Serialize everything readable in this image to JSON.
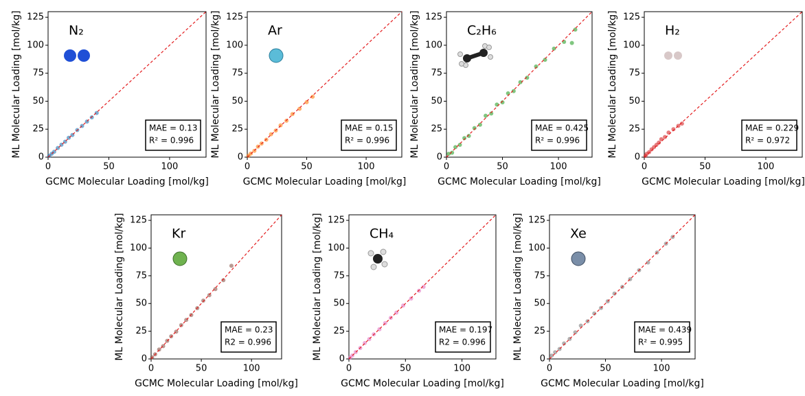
{
  "chart_data": [
    {
      "type": "scatter",
      "label": "N₂",
      "color": "#1f77b4",
      "x_label": "GCMC Molecular Loading [mol/kg]",
      "y_label": "ML Molecular Loading [mol/kg]",
      "x": [
        1,
        3,
        5,
        8,
        11,
        14,
        17,
        20,
        24,
        28,
        32,
        36,
        40
      ],
      "values": [
        1.2,
        3.1,
        4.8,
        8.2,
        11.1,
        13.8,
        17.3,
        19.8,
        24.2,
        27.9,
        31.8,
        35.6,
        39.5
      ],
      "xlim": [
        0,
        130
      ],
      "ylim": [
        0,
        130
      ],
      "xticks": [
        0,
        50,
        100
      ],
      "yticks": [
        0,
        25,
        50,
        75,
        100,
        125
      ],
      "annotations": [
        "MAE = 0.13",
        "R² = 0.996"
      ]
    },
    {
      "type": "scatter",
      "label": "Ar",
      "color": "#ff7f0e",
      "x_label": "GCMC Molecular Loading [mol/kg]",
      "y_label": "ML Molecular Loading [mol/kg]",
      "x": [
        1,
        3,
        6,
        9,
        12,
        16,
        20,
        24,
        28,
        33,
        38,
        44,
        50,
        55
      ],
      "values": [
        1.3,
        3.2,
        5.7,
        9.4,
        12.2,
        15.6,
        20.5,
        23.8,
        28.4,
        32.6,
        38.5,
        43.2,
        49.1,
        54
      ],
      "xlim": [
        0,
        130
      ],
      "ylim": [
        0,
        130
      ],
      "xticks": [
        0,
        50,
        100
      ],
      "yticks": [
        0,
        25,
        50,
        75,
        100,
        125
      ],
      "annotations": [
        "MAE = 0.15",
        "R² = 0.996"
      ]
    },
    {
      "type": "scatter",
      "label": "C₂H₆",
      "color": "#2ca02c",
      "x_label": "GCMC Molecular Loading [mol/kg]",
      "y_label": "ML Molecular Loading [mol/kg]",
      "x": [
        2,
        5,
        8,
        12,
        16,
        20,
        25,
        30,
        35,
        40,
        45,
        50,
        55,
        60,
        66,
        72,
        80,
        88,
        96,
        105,
        112,
        115
      ],
      "values": [
        3,
        4,
        9,
        11,
        17,
        19,
        26,
        29,
        37,
        39,
        47,
        49,
        57,
        59,
        67,
        71,
        81,
        87,
        97,
        103,
        102,
        114
      ],
      "xlim": [
        0,
        130
      ],
      "ylim": [
        0,
        130
      ],
      "xticks": [
        0,
        50,
        100
      ],
      "yticks": [
        0,
        25,
        50,
        75,
        100,
        125
      ],
      "annotations": [
        "MAE = 0.425",
        "R² = 0.996"
      ]
    },
    {
      "type": "scatter",
      "label": "H₂",
      "color": "#d62728",
      "x_label": "GCMC Molecular Loading [mol/kg]",
      "y_label": "ML Molecular Loading [mol/kg]",
      "x": [
        1,
        2,
        4,
        6,
        8,
        10,
        12,
        14,
        17,
        20,
        24,
        28,
        31
      ],
      "values": [
        1.2,
        3,
        4.5,
        7,
        9,
        11,
        13,
        16,
        18,
        22,
        25,
        28,
        30
      ],
      "xlim": [
        0,
        130
      ],
      "ylim": [
        0,
        130
      ],
      "xticks": [
        0,
        50,
        100
      ],
      "yticks": [
        0,
        25,
        50,
        75,
        100,
        125
      ],
      "annotations": [
        "MAE = 0.229",
        "R² = 0.972"
      ]
    },
    {
      "type": "scatter",
      "label": "Kr",
      "color": "#8c564b",
      "x_label": "GCMC Molecular Loading [mol/kg]",
      "y_label": "ML Molecular Loading [mol/kg]",
      "x": [
        1,
        4,
        8,
        12,
        16,
        20,
        25,
        30,
        35,
        40,
        46,
        52,
        58,
        64,
        72,
        80
      ],
      "values": [
        1.5,
        4.2,
        8.5,
        11.5,
        16.3,
        20.4,
        24.6,
        30.5,
        35.2,
        39.6,
        45.8,
        52.6,
        57.5,
        63,
        71,
        84
      ],
      "xlim": [
        0,
        130
      ],
      "ylim": [
        0,
        130
      ],
      "xticks": [
        0,
        50,
        100
      ],
      "yticks": [
        0,
        25,
        50,
        75,
        100,
        125
      ],
      "annotations": [
        "MAE = 0.23",
        "R2 = 0.996"
      ]
    },
    {
      "type": "scatter",
      "label": "CH₄",
      "color": "#e377c2",
      "x_label": "GCMC Molecular Loading [mol/kg]",
      "y_label": "ML Molecular Loading [mol/kg]",
      "x": [
        1,
        3,
        6,
        10,
        14,
        18,
        22,
        27,
        32,
        37,
        42,
        48,
        55,
        62,
        66
      ],
      "values": [
        1.2,
        3.1,
        6.2,
        9.8,
        14.3,
        17.9,
        22.2,
        26.8,
        32.3,
        37.1,
        41.8,
        48.2,
        54.5,
        61.5,
        65
      ],
      "xlim": [
        0,
        130
      ],
      "ylim": [
        0,
        130
      ],
      "xticks": [
        0,
        50,
        100
      ],
      "yticks": [
        0,
        25,
        50,
        75,
        100,
        125
      ],
      "annotations": [
        "MAE = 0.197",
        "R2 = 0.996"
      ]
    },
    {
      "type": "scatter",
      "label": "Xe",
      "color": "#7f7f7f",
      "x_label": "GCMC Molecular Loading [mol/kg]",
      "y_label": "ML Molecular Loading [mol/kg]",
      "x": [
        2,
        5,
        9,
        13,
        18,
        23,
        28,
        34,
        40,
        46,
        52,
        58,
        65,
        72,
        80,
        88,
        96,
        104,
        110
      ],
      "values": [
        3,
        6,
        9,
        14,
        18,
        24,
        30,
        34,
        41,
        46,
        52,
        59,
        65,
        72,
        80,
        87,
        96,
        104,
        110
      ],
      "xlim": [
        0,
        130
      ],
      "ylim": [
        0,
        130
      ],
      "xticks": [
        0,
        50,
        100
      ],
      "yticks": [
        0,
        25,
        50,
        75,
        100,
        125
      ],
      "annotations": [
        "MAE = 0.439",
        "R² = 0.995"
      ]
    }
  ]
}
